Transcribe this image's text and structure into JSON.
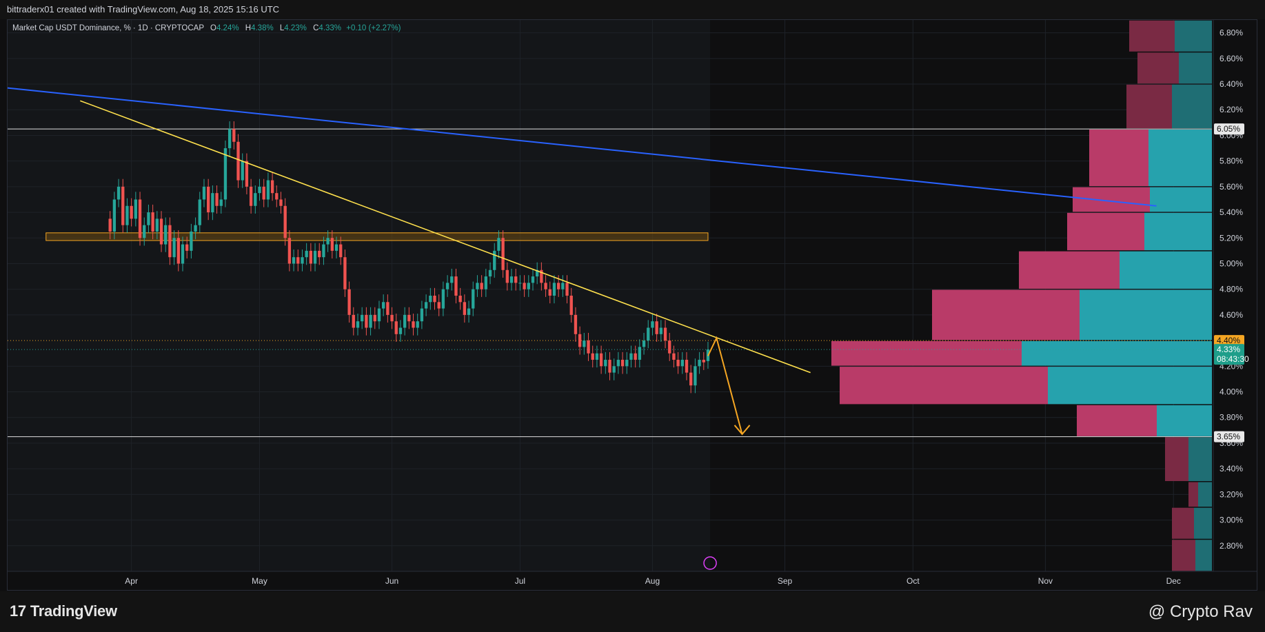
{
  "header": {
    "author_line": "bittraderx01 created with TradingView.com, Aug 18, 2025 15:16 UTC"
  },
  "legend": {
    "symbol": "Market Cap USDT Dominance, % · 1D · CRYPTOCAP",
    "o_label": "O",
    "o_value": "4.24%",
    "h_label": "H",
    "h_value": "4.38%",
    "l_label": "L",
    "l_value": "4.23%",
    "c_label": "C",
    "c_value": "4.33%",
    "change": "+0.10 (+2.27%)"
  },
  "chart_data": {
    "type": "candlestick",
    "ylim": [
      2.6,
      6.9
    ],
    "y_ticks": [
      "6.80%",
      "6.60%",
      "6.40%",
      "6.20%",
      "6.00%",
      "5.80%",
      "5.60%",
      "5.40%",
      "5.20%",
      "5.00%",
      "4.80%",
      "4.60%",
      "4.20%",
      "4.00%",
      "3.80%",
      "3.60%",
      "3.40%",
      "3.20%",
      "3.00%",
      "2.80%"
    ],
    "y_tick_values": [
      6.8,
      6.6,
      6.4,
      6.2,
      6.0,
      5.8,
      5.6,
      5.4,
      5.2,
      5.0,
      4.8,
      4.6,
      4.2,
      4.0,
      3.8,
      3.6,
      3.4,
      3.2,
      3.0,
      2.8
    ],
    "x_ticks": [
      {
        "label": "Apr",
        "day": 25
      },
      {
        "label": "May",
        "day": 55
      },
      {
        "label": "Jun",
        "day": 86
      },
      {
        "label": "Jul",
        "day": 116
      },
      {
        "label": "Aug",
        "day": 147
      },
      {
        "label": "Sep",
        "day": 178
      },
      {
        "label": "Oct",
        "day": 208
      },
      {
        "label": "Nov",
        "day": 239
      },
      {
        "label": "Dec",
        "day": 269
      }
    ],
    "x_range_days": [
      -4,
      278
    ],
    "last_bar_day": 160,
    "candles_close": [
      5.25,
      5.5,
      5.6,
      5.3,
      5.45,
      5.35,
      5.5,
      5.2,
      5.3,
      5.4,
      5.25,
      5.35,
      5.15,
      5.3,
      5.05,
      5.2,
      5.0,
      5.15,
      5.1,
      5.25,
      5.3,
      5.5,
      5.6,
      5.4,
      5.55,
      5.45,
      5.5,
      5.9,
      6.05,
      5.95,
      5.65,
      5.8,
      5.6,
      5.45,
      5.55,
      5.6,
      5.5,
      5.65,
      5.55,
      5.5,
      5.45,
      5.2,
      5.0,
      5.05,
      5.0,
      5.05,
      5.1,
      5.0,
      5.1,
      5.05,
      5.15,
      5.2,
      5.1,
      5.15,
      5.05,
      4.8,
      4.6,
      4.5,
      4.55,
      4.6,
      4.5,
      4.6,
      4.55,
      4.65,
      4.7,
      4.6,
      4.55,
      4.45,
      4.5,
      4.6,
      4.55,
      4.5,
      4.55,
      4.65,
      4.7,
      4.75,
      4.7,
      4.65,
      4.8,
      4.85,
      4.9,
      4.75,
      4.7,
      4.6,
      4.65,
      4.8,
      4.85,
      4.8,
      4.9,
      4.95,
      5.1,
      5.2,
      4.95,
      4.85,
      4.9,
      4.85,
      4.85,
      4.8,
      4.85,
      4.9,
      4.95,
      4.85,
      4.8,
      4.75,
      4.85,
      4.8,
      4.85,
      4.75,
      4.6,
      4.45,
      4.35,
      4.4,
      4.3,
      4.25,
      4.3,
      4.2,
      4.25,
      4.15,
      4.2,
      4.25,
      4.2,
      4.25,
      4.3,
      4.25,
      4.35,
      4.4,
      4.5,
      4.55,
      4.45,
      4.5,
      4.4,
      4.3,
      4.25,
      4.2,
      4.25,
      4.15,
      4.05,
      4.2,
      4.25,
      4.23,
      4.33
    ],
    "candles_open": [
      5.35,
      5.25,
      5.5,
      5.6,
      5.3,
      5.45,
      5.35,
      5.5,
      5.2,
      5.3,
      5.4,
      5.25,
      5.35,
      5.15,
      5.3,
      5.05,
      5.2,
      5.0,
      5.15,
      5.1,
      5.25,
      5.3,
      5.5,
      5.6,
      5.4,
      5.55,
      5.45,
      5.5,
      5.9,
      6.05,
      5.95,
      5.65,
      5.8,
      5.6,
      5.45,
      5.55,
      5.6,
      5.5,
      5.65,
      5.55,
      5.5,
      5.45,
      5.2,
      5.0,
      5.05,
      5.0,
      5.05,
      5.1,
      5.0,
      5.1,
      5.05,
      5.15,
      5.2,
      5.1,
      5.15,
      5.05,
      4.8,
      4.6,
      4.5,
      4.55,
      4.6,
      4.5,
      4.6,
      4.55,
      4.65,
      4.7,
      4.6,
      4.55,
      4.45,
      4.5,
      4.6,
      4.55,
      4.5,
      4.55,
      4.65,
      4.7,
      4.75,
      4.7,
      4.65,
      4.8,
      4.85,
      4.9,
      4.75,
      4.7,
      4.6,
      4.65,
      4.8,
      4.85,
      4.8,
      4.9,
      4.95,
      5.1,
      5.2,
      4.95,
      4.85,
      4.9,
      4.85,
      4.85,
      4.8,
      4.85,
      4.9,
      4.95,
      4.85,
      4.8,
      4.75,
      4.85,
      4.8,
      4.85,
      4.75,
      4.6,
      4.45,
      4.35,
      4.4,
      4.3,
      4.25,
      4.3,
      4.2,
      4.25,
      4.15,
      4.2,
      4.25,
      4.2,
      4.25,
      4.3,
      4.25,
      4.35,
      4.4,
      4.5,
      4.55,
      4.45,
      4.5,
      4.4,
      4.3,
      4.25,
      4.2,
      4.25,
      4.15,
      4.05,
      4.2,
      4.25,
      4.24
    ],
    "levels": [
      {
        "price": 6.05,
        "label": "6.05%"
      },
      {
        "price": 3.65,
        "label": "3.65%"
      }
    ],
    "current": {
      "price": 4.33,
      "label": "4.33%",
      "countdown": "08:43:30",
      "dotted_price": 4.4,
      "dotted_label": "4.40%"
    },
    "resistance_zone": {
      "from_day": 5,
      "to_day": 160,
      "low": 5.18,
      "high": 5.24
    },
    "blue_trendline": {
      "start": [
        -4,
        6.37
      ],
      "end": [
        265,
        5.45
      ]
    },
    "yellow_trendline": {
      "start": [
        13,
        6.27
      ],
      "end": [
        184,
        4.15
      ]
    },
    "projection_arrow": {
      "points": [
        [
          160,
          4.28
        ],
        [
          162,
          4.42
        ],
        [
          168,
          3.67
        ]
      ]
    },
    "volume_profile": [
      {
        "low": 6.65,
        "high": 6.9,
        "sell": 0.33,
        "buy": 0.27,
        "dim": true
      },
      {
        "low": 6.4,
        "high": 6.65,
        "sell": 0.3,
        "buy": 0.24,
        "dim": true
      },
      {
        "low": 6.05,
        "high": 6.4,
        "sell": 0.33,
        "buy": 0.29,
        "dim": true
      },
      {
        "low": 5.6,
        "high": 6.05,
        "sell": 0.43,
        "buy": 0.46,
        "dim": false
      },
      {
        "low": 5.4,
        "high": 5.6,
        "sell": 0.56,
        "buy": 0.45,
        "dim": false
      },
      {
        "low": 5.1,
        "high": 5.4,
        "sell": 0.56,
        "buy": 0.49,
        "dim": false
      },
      {
        "low": 4.8,
        "high": 5.1,
        "sell": 0.73,
        "buy": 0.67,
        "dim": false
      },
      {
        "low": 4.4,
        "high": 4.8,
        "sell": 1.07,
        "buy": 0.96,
        "dim": false
      },
      {
        "low": 4.2,
        "high": 4.4,
        "sell": 1.38,
        "buy": 1.38,
        "dim": false
      },
      {
        "low": 3.9,
        "high": 4.2,
        "sell": 1.51,
        "buy": 1.19,
        "dim": false
      },
      {
        "low": 3.65,
        "high": 3.9,
        "sell": 0.58,
        "buy": 0.4,
        "dim": false
      },
      {
        "low": 3.3,
        "high": 3.65,
        "sell": 0.17,
        "buy": 0.17,
        "dim": true
      },
      {
        "low": 3.1,
        "high": 3.3,
        "sell": 0.07,
        "buy": 0.1,
        "dim": true
      },
      {
        "low": 2.85,
        "high": 3.1,
        "sell": 0.16,
        "buy": 0.13,
        "dim": true
      },
      {
        "low": 2.6,
        "high": 2.85,
        "sell": 0.17,
        "buy": 0.12,
        "dim": true
      }
    ],
    "colors": {
      "up": "#26a69a",
      "down": "#ef5350",
      "blue_line": "#2962ff",
      "yellow_line": "#ffe14d",
      "arrow": "#f5a623",
      "zone_fill": "#6b4a10",
      "zone_border": "#f5a623",
      "vp_sell": "#b93b68",
      "vp_buy": "#26a2ad",
      "vp_sell_dim": "#7a2a44",
      "vp_buy_dim": "#1f6e74",
      "badge_orange": "#f5a623",
      "badge_green": "#1e9e8a"
    }
  },
  "footer": {
    "brand_mark": "17",
    "brand": "TradingView",
    "watermark": "@ Crypto Rav"
  }
}
